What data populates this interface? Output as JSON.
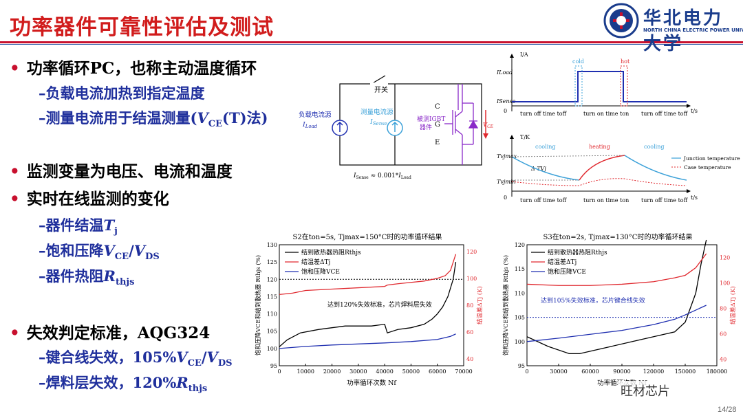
{
  "header": {
    "title": "功率器件可靠性评估及测试",
    "logo_cn": "华北电力大学",
    "logo_en": "NORTH CHINA ELECTRIC POWER UNIVERSITY"
  },
  "bullets": {
    "b1": "功率循环PC，也称主动温度循环",
    "b1_s1": "–负载电流加热到指定温度",
    "b1_s2_pre": "–测量电流用于结温测量(",
    "b1_s2_post": "(T)法)",
    "b2": "监测变量为电压、电流和温度",
    "b3": "实时在线监测的变化",
    "b3_s1": "–器件结温",
    "b3_s2": "–饱和压降",
    "b3_s3": "–器件热阻",
    "b4": "失效判定标准，AQG324",
    "b4_s1": "–键合线失效，105%",
    "b4_s2": "–焊料层失效，120%"
  },
  "circuit": {
    "switch_label": "开关",
    "load_source": "负载电流源",
    "sense_source": "测量电流源",
    "dut": "被测IGBT",
    "dut2": "器件",
    "c": "C",
    "g": "G",
    "e": "E",
    "formula": "≈ 0.001*"
  },
  "timing": {
    "i_axis": "I/A",
    "t_axis": "t/s",
    "cold": "cold",
    "hot": "hot",
    "ILoad": "ILoad",
    "ISense": "ISense",
    "off1": "turn off time toff",
    "on": "turn on time ton",
    "off2": "turn off time toff",
    "T_axis": "T/K",
    "cooling": "cooling",
    "heating": "heating",
    "legend1": "Junction temperature",
    "legend2": "Case temperature",
    "tjmax": "Tvjmax",
    "tjmin": "Tvjmin",
    "dtj": "Δ TVj",
    "zero": "0"
  },
  "chart1": {
    "title": "S2在ton=5s, Tjmax=150°C时的功率循环结果",
    "annot": "达到120%失效标准，芯片焊料层失效",
    "leg1": "结到散热器热阻Rthjs",
    "leg2": "结温差ΔTj",
    "leg3": "饱和压降VCE",
    "xlabel": "功率循环次数 Nf",
    "ylabel": "饱和压降VCE和结到散热器 Rthjs (%)",
    "y2label": "结温差ΔTj (K)"
  },
  "chart2": {
    "title": "S3在ton=2s, Tjmax=130°C时的功率循环结果",
    "annot": "达到105%失效标准，芯片键合线失效",
    "leg1": "结到散热器热阻Rthjs",
    "leg2": "结温差ΔTj",
    "leg3": "饱和压降VCE",
    "xlabel": "功率循环次数 Nf",
    "ylabel": "饱和压降VCE和结到散热器 Rthjs (%)",
    "y2label": "结温差ΔTj (K)"
  },
  "watermark": "旺材芯片",
  "page": "14/28",
  "colors": {
    "title": "#d11c1c",
    "sub": "#1f2f9c",
    "red": "#e0282e",
    "blue": "#1f2fb0",
    "black": "#000000"
  },
  "chart_data": [
    {
      "type": "line",
      "title": "S2在ton=5s, Tjmax=150°C时的功率循环结果",
      "xlabel": "功率循环次数 Nf",
      "ylabel": "饱和压降VCE和结到散热器 Rthjs (%)",
      "y2label": "结温差ΔTj (K)",
      "xlim": [
        0,
        70000
      ],
      "ylim": [
        95,
        130
      ],
      "y2lim": [
        35,
        125
      ],
      "xticks": [
        0,
        10000,
        20000,
        30000,
        40000,
        50000,
        60000,
        70000
      ],
      "yticks": [
        95,
        100,
        105,
        110,
        115,
        120,
        125,
        130
      ],
      "y2ticks": [
        40,
        60,
        80,
        100,
        120
      ],
      "threshold": 120,
      "series": [
        {
          "name": "结到散热器热阻Rthjs",
          "axis": "left",
          "color": "#000000",
          "x": [
            0,
            3000,
            8000,
            15000,
            20000,
            25000,
            30000,
            35000,
            40000,
            41000,
            45000,
            50000,
            55000,
            58000,
            60000,
            62000,
            64000,
            66000,
            67000
          ],
          "y": [
            100.5,
            102.5,
            104.5,
            105.5,
            106,
            106.5,
            106.5,
            106.5,
            107,
            104.5,
            105.5,
            106,
            107,
            108.5,
            110,
            112,
            115,
            120,
            125
          ]
        },
        {
          "name": "结温差ΔTj",
          "axis": "right",
          "color": "#e0282e",
          "x": [
            0,
            5000,
            10000,
            20000,
            30000,
            40000,
            41000,
            45000,
            50000,
            55000,
            60000,
            63000,
            65000,
            67000
          ],
          "y": [
            88,
            89,
            91,
            92,
            93,
            94,
            95,
            96,
            97,
            98,
            100,
            102,
            106,
            118
          ]
        },
        {
          "name": "饱和压降VCE",
          "axis": "left",
          "color": "#1f2fb0",
          "x": [
            0,
            10000,
            20000,
            30000,
            40000,
            50000,
            60000,
            65000,
            67000
          ],
          "y": [
            100,
            100.6,
            101,
            101.3,
            101.6,
            102,
            102.6,
            103.5,
            104.2
          ]
        }
      ]
    },
    {
      "type": "line",
      "title": "S3在ton=2s, Tjmax=130°C时的功率循环结果",
      "xlabel": "功率循环次数 Nf",
      "ylabel": "饱和压降VCE和结到散热器 Rthjs (%)",
      "y2label": "结温差ΔTj (K)",
      "xlim": [
        0,
        180000
      ],
      "ylim": [
        95,
        120
      ],
      "y2lim": [
        35,
        130
      ],
      "xticks": [
        0,
        30000,
        60000,
        90000,
        120000,
        150000,
        180000
      ],
      "yticks": [
        95,
        100,
        105,
        110,
        115,
        120
      ],
      "y2ticks": [
        40,
        60,
        80,
        100,
        120
      ],
      "threshold": 105,
      "series": [
        {
          "name": "结到散热器热阻Rthjs",
          "axis": "left",
          "color": "#000000",
          "x": [
            0,
            20000,
            40000,
            50000,
            60000,
            80000,
            100000,
            120000,
            140000,
            150000,
            160000,
            165000,
            170000
          ],
          "y": [
            101,
            99,
            97.5,
            97.5,
            98,
            99,
            100,
            101,
            102,
            104,
            110,
            116,
            121
          ]
        },
        {
          "name": "结温差ΔTj",
          "axis": "right",
          "color": "#e0282e",
          "x": [
            0,
            30000,
            60000,
            90000,
            120000,
            140000,
            150000,
            160000,
            170000
          ],
          "y": [
            99,
            98,
            98,
            99,
            101,
            104,
            106,
            112,
            123
          ]
        },
        {
          "name": "饱和压降VCE",
          "axis": "left",
          "color": "#1f2fb0",
          "x": [
            0,
            30000,
            60000,
            90000,
            120000,
            140000,
            150000,
            160000,
            170000
          ],
          "y": [
            100,
            100.7,
            101.5,
            102.3,
            103.5,
            104.6,
            105.5,
            106.5,
            107.5
          ]
        }
      ]
    }
  ]
}
